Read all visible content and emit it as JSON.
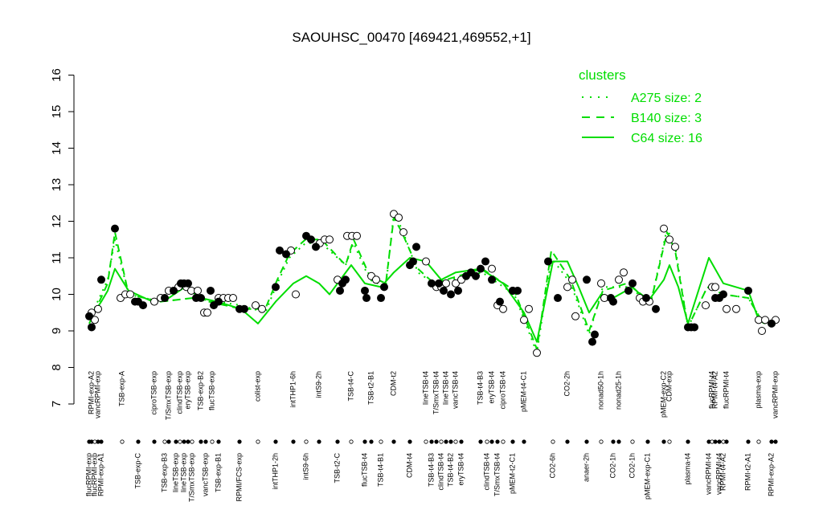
{
  "chart_data": {
    "type": "line",
    "title": "SAOUHSC_00470 [469421,469552,+1]",
    "xlabel": "",
    "ylabel": "",
    "ylim": [
      7,
      16
    ],
    "yticks": [
      7,
      8,
      9,
      10,
      11,
      12,
      13,
      14,
      15,
      16
    ],
    "series_color": "#00dd00",
    "legend": {
      "title": "clusters",
      "position": "top-right",
      "entries": [
        {
          "label": "A275 size: 2",
          "style": "dotted"
        },
        {
          "label": "B140 size: 3",
          "style": "dashed"
        },
        {
          "label": "C64 size: 16",
          "style": "solid"
        }
      ]
    },
    "x_labels": [
      "flucRPMI-exp",
      "RPMI-exp-A2",
      "flucRPMI-exp",
      "vancRPMI-exp",
      "RPMI-exp-A1",
      "TSB-exp-A",
      "TSB-exp-C",
      "ciproTSB-exp",
      "TSB-exp-B3",
      "T/SmxTSB-exp",
      "lineTSB-exp",
      "clindTSB-exp",
      "lineTSB-exp",
      "eryTSB-exp",
      "T/SmxTSB-exp",
      "TSB-exp-B2",
      "vancTSB-exp",
      "flucTSB-exp",
      "TSB-exp-B1",
      "RPMI/FCS-exp",
      "colist-exp",
      "intTHP1-2h",
      "intTHP1-6h",
      "intS9-6h",
      "intS9-2h",
      "TSB-t2-C",
      "TSB-t4-C",
      "flucTSB-t4",
      "TSB-t2-B1",
      "TSB-t4-B1",
      "CDM-t2",
      "CDM-t4",
      "lineTSB-t4",
      "TSB-t4-B3",
      "T/SmxTSB-t4",
      "clindTSB-t4",
      "lineTSB-t4",
      "TSB-t4-B2",
      "vancTSB-t4",
      "eryTSB-t4",
      "TSB-t4-B3",
      "clindTSB-t4",
      "eryTSB-t4",
      "T/SmxTSB-t4",
      "ciproTSB-t4",
      "pMEM-t2-C1",
      "pMEM-t4-C1",
      "CO2-6h",
      "CO2-2h",
      "anaer-2h",
      "nonad50-1h",
      "CO2-1h",
      "nonad25-1h",
      "CO2-1h",
      "pMEM-exp-C1",
      "pMEM-exp-C2",
      "CDM-exp",
      "plasma-t4",
      "vancRPMI-t4",
      "flucRPMI-t4",
      "RPMI-t4-A2",
      "vancRPMI-t4",
      "RPMI-t4-A2",
      "flucRPMI-t4",
      "RPMI-t2-A1",
      "plasma-exp",
      "RPMI-exp-A2",
      "vancRPMI-exp"
    ],
    "label_rows": [
      "bottom",
      "top",
      "bottom",
      "top",
      "bottom",
      "top",
      "bottom",
      "top",
      "bottom",
      "top",
      "bottom",
      "top",
      "bottom",
      "top",
      "bottom",
      "top",
      "bottom",
      "top",
      "bottom",
      "bottom",
      "top",
      "bottom",
      "top",
      "bottom",
      "top",
      "bottom",
      "top",
      "bottom",
      "top",
      "bottom",
      "top",
      "bottom",
      "top",
      "bottom",
      "top",
      "bottom",
      "top",
      "bottom",
      "top",
      "bottom",
      "top",
      "bottom",
      "top",
      "bottom",
      "top",
      "bottom",
      "top",
      "bottom",
      "top",
      "bottom",
      "top",
      "bottom",
      "top",
      "bottom",
      "bottom",
      "top",
      "top",
      "bottom",
      "bottom",
      "top",
      "top",
      "bottom",
      "bottom",
      "top",
      "bottom",
      "top",
      "bottom",
      "top"
    ],
    "x_positions": [
      111,
      114,
      118,
      122,
      126,
      152,
      172,
      192,
      205,
      210,
      219,
      224,
      229,
      234,
      239,
      250,
      256,
      264,
      272,
      298,
      321,
      343,
      365,
      381,
      397,
      420,
      437,
      454,
      462,
      474,
      490,
      510,
      530,
      537,
      543,
      549,
      555,
      561,
      567,
      574,
      598,
      606,
      612,
      619,
      626,
      638,
      652,
      688,
      706,
      730,
      748,
      763,
      770,
      787,
      806,
      826,
      833,
      856,
      882,
      886,
      890,
      895,
      900,
      904,
      931,
      944,
      960,
      965
    ],
    "series": [
      {
        "name": "A275",
        "style": "dotted",
        "points": [
          [
            111,
            9.3
          ],
          [
            134,
            10.4
          ],
          [
            143,
            11.5
          ],
          [
            160,
            10.0
          ],
          [
            200,
            9.8
          ],
          [
            240,
            9.9
          ],
          [
            300,
            9.7
          ],
          [
            330,
            9.5
          ],
          [
            345,
            10.3
          ],
          [
            360,
            11.0
          ],
          [
            380,
            11.4
          ],
          [
            400,
            11.4
          ],
          [
            430,
            10.8
          ],
          [
            440,
            11.4
          ],
          [
            460,
            10.4
          ],
          [
            480,
            10.2
          ],
          [
            490,
            12.2
          ],
          [
            500,
            11.8
          ],
          [
            520,
            10.6
          ],
          [
            540,
            10.3
          ],
          [
            600,
            10.6
          ],
          [
            640,
            10.0
          ],
          [
            668,
            8.4
          ],
          [
            686,
            11.0
          ],
          [
            710,
            10.3
          ],
          [
            733,
            8.9
          ],
          [
            750,
            10.2
          ],
          [
            780,
            10.2
          ],
          [
            810,
            9.8
          ],
          [
            830,
            11.8
          ],
          [
            840,
            11.3
          ],
          [
            856,
            9.1
          ],
          [
            880,
            10.2
          ],
          [
            900,
            10.0
          ],
          [
            931,
            9.9
          ],
          [
            950,
            9.2
          ],
          [
            965,
            9.3
          ]
        ]
      },
      {
        "name": "B140",
        "style": "dashed",
        "points": [
          [
            111,
            9.2
          ],
          [
            134,
            10.3
          ],
          [
            143,
            11.7
          ],
          [
            160,
            10.0
          ],
          [
            200,
            9.8
          ],
          [
            240,
            9.9
          ],
          [
            300,
            9.6
          ],
          [
            330,
            9.6
          ],
          [
            345,
            10.4
          ],
          [
            360,
            11.1
          ],
          [
            380,
            11.5
          ],
          [
            400,
            11.5
          ],
          [
            430,
            10.8
          ],
          [
            440,
            11.5
          ],
          [
            460,
            10.5
          ],
          [
            480,
            10.3
          ],
          [
            490,
            12.1
          ],
          [
            500,
            11.7
          ],
          [
            520,
            10.7
          ],
          [
            540,
            10.3
          ],
          [
            600,
            10.7
          ],
          [
            640,
            10.1
          ],
          [
            668,
            8.5
          ],
          [
            686,
            11.2
          ],
          [
            710,
            10.4
          ],
          [
            733,
            9.0
          ],
          [
            750,
            10.1
          ],
          [
            780,
            10.3
          ],
          [
            810,
            9.8
          ],
          [
            830,
            11.7
          ],
          [
            840,
            11.2
          ],
          [
            856,
            9.1
          ],
          [
            880,
            10.2
          ],
          [
            900,
            10.0
          ],
          [
            931,
            9.9
          ],
          [
            950,
            9.2
          ],
          [
            965,
            9.3
          ]
        ]
      },
      {
        "name": "C64",
        "style": "solid",
        "points": [
          [
            111,
            9.3
          ],
          [
            126,
            9.8
          ],
          [
            134,
            10.1
          ],
          [
            143,
            10.7
          ],
          [
            160,
            10.1
          ],
          [
            190,
            9.8
          ],
          [
            210,
            9.9
          ],
          [
            230,
            10.2
          ],
          [
            250,
            9.9
          ],
          [
            270,
            9.8
          ],
          [
            300,
            9.6
          ],
          [
            321,
            9.2
          ],
          [
            343,
            9.8
          ],
          [
            365,
            10.3
          ],
          [
            381,
            10.5
          ],
          [
            397,
            10.3
          ],
          [
            410,
            10.0
          ],
          [
            420,
            10.3
          ],
          [
            437,
            10.8
          ],
          [
            454,
            10.3
          ],
          [
            474,
            10.2
          ],
          [
            490,
            10.6
          ],
          [
            510,
            11.0
          ],
          [
            530,
            10.9
          ],
          [
            549,
            10.4
          ],
          [
            567,
            10.6
          ],
          [
            598,
            10.7
          ],
          [
            626,
            10.3
          ],
          [
            652,
            9.5
          ],
          [
            668,
            8.7
          ],
          [
            688,
            10.9
          ],
          [
            706,
            10.9
          ],
          [
            720,
            10.2
          ],
          [
            733,
            9.5
          ],
          [
            748,
            10.0
          ],
          [
            763,
            9.9
          ],
          [
            787,
            10.2
          ],
          [
            806,
            9.8
          ],
          [
            826,
            10.4
          ],
          [
            833,
            10.8
          ],
          [
            844,
            10.2
          ],
          [
            856,
            9.2
          ],
          [
            882,
            11.0
          ],
          [
            900,
            10.3
          ],
          [
            931,
            10.1
          ],
          [
            944,
            9.3
          ],
          [
            965,
            9.2
          ]
        ]
      }
    ],
    "points_open": [
      [
        114,
        9.5
      ],
      [
        118,
        9.3
      ],
      [
        122,
        9.6
      ],
      [
        150,
        9.9
      ],
      [
        156,
        10.0
      ],
      [
        162,
        10.0
      ],
      [
        192,
        9.8
      ],
      [
        200,
        9.9
      ],
      [
        210,
        10.1
      ],
      [
        222,
        10.2
      ],
      [
        232,
        10.2
      ],
      [
        238,
        10.1
      ],
      [
        246,
        10.1
      ],
      [
        254,
        9.5
      ],
      [
        258,
        9.5
      ],
      [
        272,
        9.9
      ],
      [
        278,
        9.9
      ],
      [
        284,
        9.9
      ],
      [
        290,
        9.9
      ],
      [
        318,
        9.7
      ],
      [
        326,
        9.6
      ],
      [
        362,
        11.2
      ],
      [
        368,
        10.0
      ],
      [
        398,
        11.4
      ],
      [
        404,
        11.5
      ],
      [
        410,
        11.5
      ],
      [
        420,
        10.4
      ],
      [
        432,
        11.6
      ],
      [
        438,
        11.6
      ],
      [
        444,
        11.6
      ],
      [
        462,
        10.5
      ],
      [
        468,
        10.4
      ],
      [
        490,
        12.2
      ],
      [
        496,
        12.1
      ],
      [
        502,
        11.7
      ],
      [
        530,
        10.9
      ],
      [
        543,
        10.2
      ],
      [
        549,
        10.2
      ],
      [
        555,
        10.3
      ],
      [
        567,
        10.3
      ],
      [
        574,
        10.4
      ],
      [
        612,
        10.7
      ],
      [
        619,
        9.7
      ],
      [
        626,
        9.6
      ],
      [
        638,
        10.1
      ],
      [
        652,
        9.3
      ],
      [
        658,
        9.6
      ],
      [
        668,
        8.4
      ],
      [
        706,
        10.2
      ],
      [
        712,
        10.4
      ],
      [
        716,
        9.4
      ],
      [
        748,
        10.3
      ],
      [
        752,
        9.9
      ],
      [
        770,
        10.4
      ],
      [
        776,
        10.6
      ],
      [
        796,
        9.9
      ],
      [
        800,
        9.8
      ],
      [
        808,
        9.8
      ],
      [
        826,
        11.8
      ],
      [
        833,
        11.5
      ],
      [
        840,
        11.3
      ],
      [
        878,
        9.7
      ],
      [
        886,
        10.2
      ],
      [
        890,
        10.2
      ],
      [
        904,
        9.6
      ],
      [
        916,
        9.6
      ],
      [
        944,
        9.3
      ],
      [
        948,
        9.0
      ],
      [
        952,
        9.3
      ],
      [
        965,
        9.3
      ]
    ],
    "points_filled": [
      [
        111,
        9.4
      ],
      [
        114,
        9.1
      ],
      [
        126,
        10.4
      ],
      [
        143,
        11.8
      ],
      [
        168,
        9.8
      ],
      [
        172,
        9.8
      ],
      [
        178,
        9.7
      ],
      [
        205,
        9.9
      ],
      [
        216,
        10.1
      ],
      [
        225,
        10.3
      ],
      [
        229,
        10.3
      ],
      [
        234,
        10.3
      ],
      [
        244,
        9.9
      ],
      [
        250,
        9.9
      ],
      [
        262,
        10.1
      ],
      [
        266,
        9.7
      ],
      [
        272,
        9.8
      ],
      [
        298,
        9.6
      ],
      [
        304,
        9.6
      ],
      [
        343,
        10.2
      ],
      [
        348,
        11.2
      ],
      [
        356,
        11.1
      ],
      [
        381,
        11.6
      ],
      [
        387,
        11.5
      ],
      [
        393,
        11.3
      ],
      [
        423,
        10.1
      ],
      [
        426,
        10.3
      ],
      [
        430,
        10.4
      ],
      [
        454,
        10.1
      ],
      [
        456,
        9.9
      ],
      [
        474,
        9.9
      ],
      [
        478,
        10.2
      ],
      [
        510,
        10.8
      ],
      [
        514,
        10.9
      ],
      [
        518,
        11.3
      ],
      [
        537,
        10.3
      ],
      [
        546,
        10.3
      ],
      [
        552,
        10.1
      ],
      [
        561,
        10.0
      ],
      [
        570,
        10.1
      ],
      [
        580,
        10.5
      ],
      [
        586,
        10.6
      ],
      [
        592,
        10.5
      ],
      [
        598,
        10.7
      ],
      [
        604,
        10.9
      ],
      [
        612,
        10.4
      ],
      [
        622,
        9.8
      ],
      [
        638,
        10.1
      ],
      [
        644,
        10.1
      ],
      [
        682,
        10.9
      ],
      [
        694,
        9.9
      ],
      [
        730,
        10.4
      ],
      [
        737,
        8.7
      ],
      [
        740,
        8.9
      ],
      [
        760,
        9.9
      ],
      [
        763,
        9.8
      ],
      [
        782,
        10.1
      ],
      [
        787,
        10.3
      ],
      [
        804,
        9.9
      ],
      [
        816,
        9.6
      ],
      [
        856,
        9.1
      ],
      [
        860,
        9.1
      ],
      [
        864,
        9.1
      ],
      [
        890,
        9.9
      ],
      [
        895,
        9.9
      ],
      [
        900,
        10.0
      ],
      [
        931,
        10.1
      ],
      [
        960,
        9.2
      ]
    ]
  }
}
